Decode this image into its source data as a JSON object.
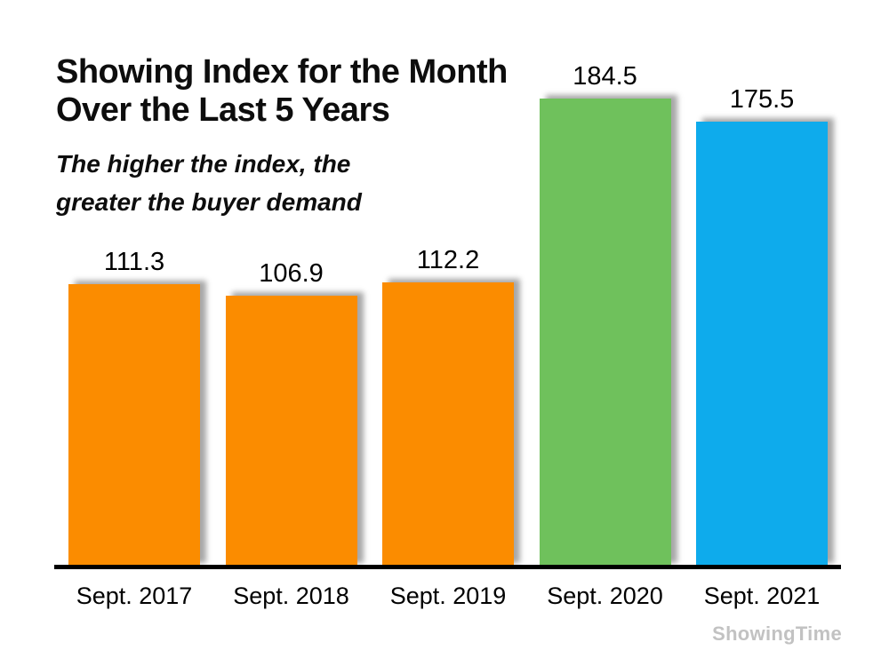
{
  "header": {
    "title": "Showing Index for the Month\nOver the Last 5 Years",
    "subtitle": "The higher the index, the\ngreater the buyer demand"
  },
  "watermark": {
    "label": "ShowingTime",
    "color": "#c2c2c2"
  },
  "chart_data": {
    "type": "bar",
    "title": "Showing Index for the Month Over the Last 5 Years",
    "subtitle": "The higher the index, the greater the buyer demand",
    "categories": [
      "Sept. 2017",
      "Sept. 2018",
      "Sept. 2019",
      "Sept. 2020",
      "Sept. 2021"
    ],
    "values": [
      111.3,
      106.9,
      112.2,
      184.5,
      175.5
    ],
    "value_labels": [
      "111.3",
      "106.9",
      "112.2",
      "184.5",
      "175.5"
    ],
    "bar_colors": [
      "#FB8C00",
      "#FB8C00",
      "#FB8C00",
      "#6FC15C",
      "#0EABEC"
    ],
    "xlabel": "",
    "ylabel": "",
    "ylim": [
      0,
      220
    ],
    "gridlines": false,
    "legend": false,
    "value_labels_position": "above-bars",
    "baseline_color": "#000000"
  }
}
